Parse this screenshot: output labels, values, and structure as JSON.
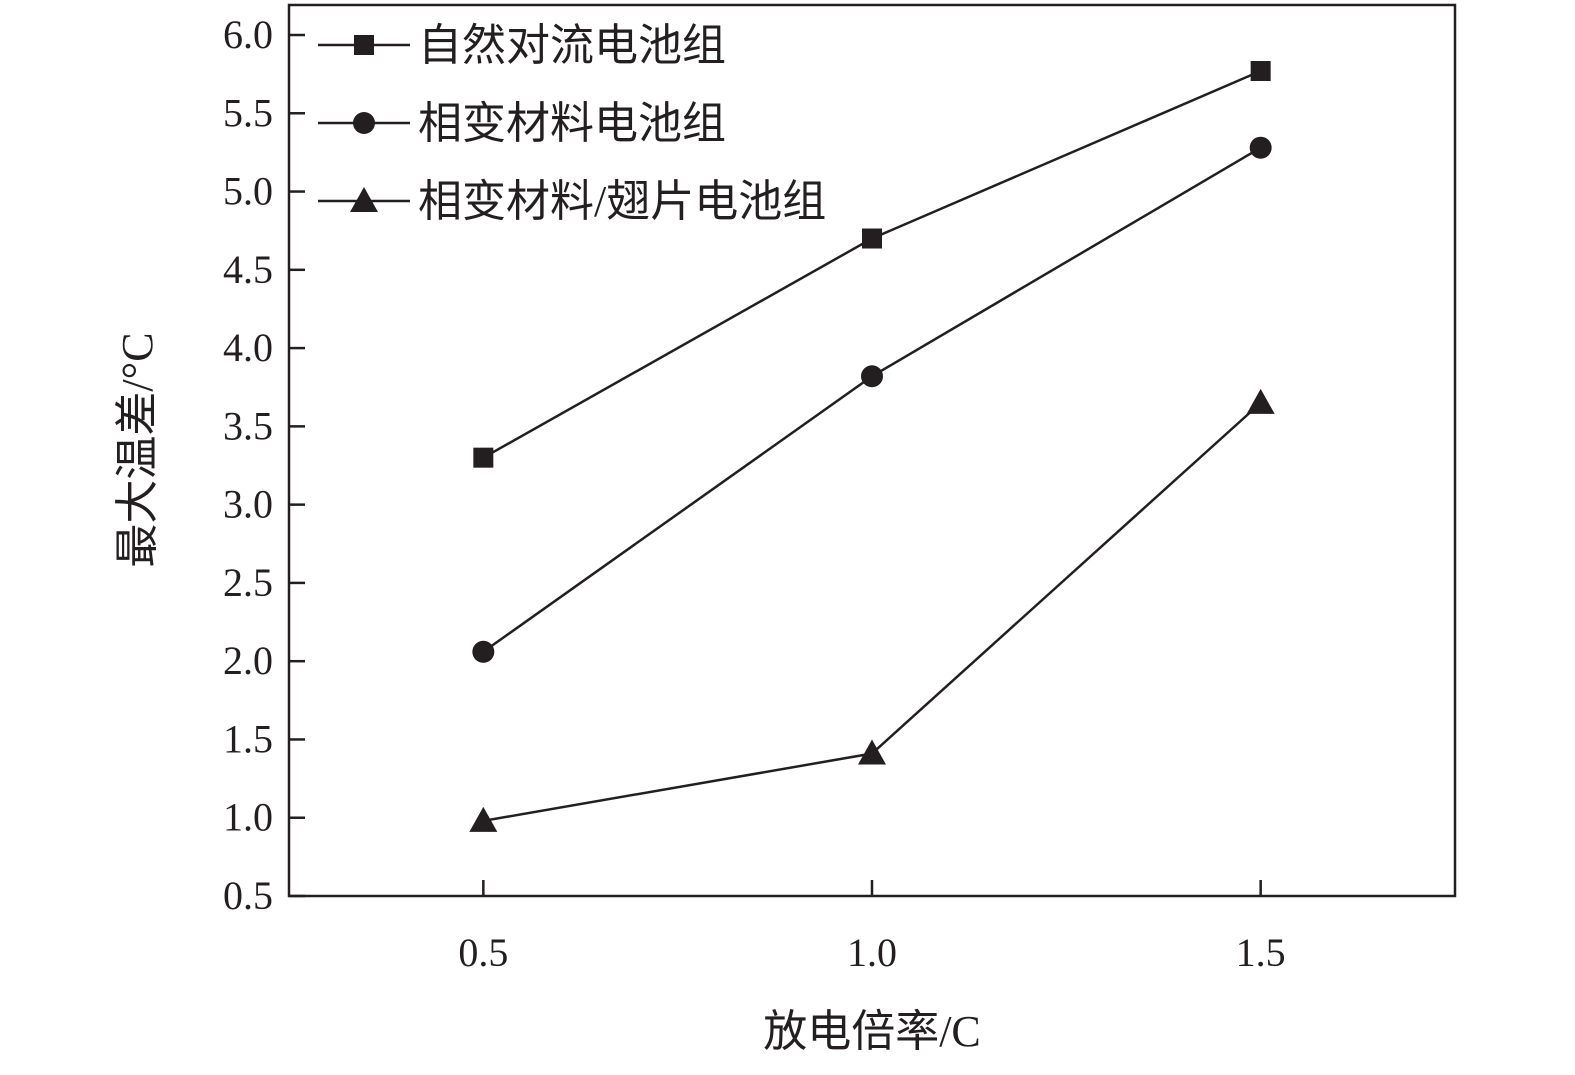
{
  "chart_data": {
    "type": "line",
    "title": "",
    "xlabel": "放电倍率/C",
    "ylabel": "最大温差/°C",
    "x": [
      0.5,
      1.0,
      1.5
    ],
    "x_tick_labels": [
      "0.5",
      "1.0",
      "1.5"
    ],
    "xlim": [
      0.25,
      1.75
    ],
    "ylim": [
      0.5,
      6.0
    ],
    "y_tick_labels": [
      "0.5",
      "1.0",
      "1.5",
      "2.0",
      "2.5",
      "3.0",
      "3.5",
      "4.0",
      "4.5",
      "5.0",
      "5.5",
      "6.0"
    ],
    "grid": false,
    "legend_position": "top-left",
    "series": [
      {
        "name": "自然对流电池组",
        "marker": "square",
        "values": [
          3.3,
          4.7,
          5.77
        ]
      },
      {
        "name": "相变材料电池组",
        "marker": "circle",
        "values": [
          2.06,
          3.82,
          5.28
        ]
      },
      {
        "name": "相变材料/翅片电池组",
        "marker": "triangle",
        "values": [
          0.98,
          1.41,
          3.65
        ]
      }
    ],
    "colors": {
      "ink": "#231f20"
    }
  }
}
